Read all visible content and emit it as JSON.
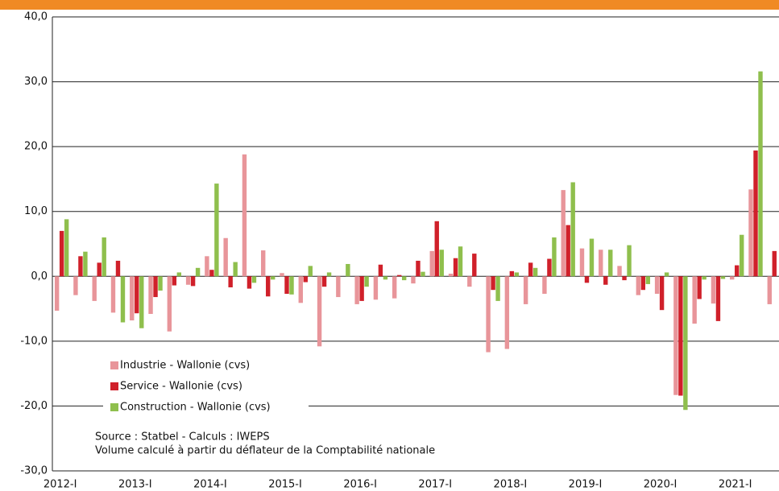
{
  "chart_data": {
    "type": "bar",
    "categories": [
      "2012-I",
      null,
      null,
      null,
      "2013-I",
      null,
      null,
      null,
      "2014-I",
      null,
      null,
      null,
      "2015-I",
      null,
      null,
      null,
      "2016-I",
      null,
      null,
      null,
      "2017-I",
      null,
      null,
      null,
      "2018-I",
      null,
      null,
      null,
      "2019-I",
      null,
      null,
      null,
      "2020-I",
      null,
      null,
      null,
      "2021-I",
      null,
      null
    ],
    "series": [
      {
        "name": "Industrie - Wallonie (cvs)",
        "color": "#e8959a",
        "values": [
          -5.3,
          -2.9,
          -3.8,
          -5.6,
          -6.8,
          -5.8,
          -8.5,
          -1.3,
          3.1,
          5.9,
          18.8,
          4.0,
          0.5,
          -4.1,
          -10.8,
          -3.2,
          -4.3,
          -3.6,
          -3.4,
          -1.1,
          3.9,
          0.4,
          -1.6,
          -11.7,
          -11.2,
          -4.3,
          -2.7,
          13.3,
          4.3,
          4.1,
          1.6,
          -2.9,
          -2.7,
          -18.3,
          -7.3,
          -4.2,
          -0.5,
          13.4,
          -4.3
        ]
      },
      {
        "name": "Service - Wallonie (cvs)",
        "color": "#d0202a",
        "values": [
          7.0,
          3.1,
          2.1,
          2.4,
          -5.7,
          -3.2,
          -1.4,
          -1.5,
          1.0,
          -1.7,
          -1.9,
          -3.1,
          -2.7,
          -0.9,
          -1.6,
          0.0,
          -3.8,
          1.8,
          0.2,
          2.4,
          8.5,
          2.8,
          3.5,
          -2.1,
          0.8,
          2.1,
          2.7,
          7.9,
          -1.0,
          -1.3,
          -0.6,
          -2.1,
          -5.2,
          -18.4,
          -3.5,
          -6.9,
          1.7,
          19.4,
          3.9
        ]
      },
      {
        "name": "Construction - Wallonie (cvs)",
        "color": "#8fbf4d",
        "values": [
          8.8,
          3.8,
          6.0,
          -7.1,
          -8.0,
          -2.2,
          0.6,
          1.3,
          14.3,
          2.2,
          -1.0,
          -0.5,
          -2.8,
          1.6,
          0.6,
          1.9,
          -1.6,
          -0.5,
          -0.6,
          0.7,
          4.1,
          4.6,
          0.0,
          -3.8,
          0.6,
          1.3,
          6.0,
          14.5,
          5.8,
          4.1,
          4.8,
          -1.2,
          0.6,
          -20.6,
          -0.5,
          -0.4,
          6.4,
          31.6,
          null
        ]
      }
    ],
    "ylim": [
      -30,
      40
    ],
    "yticks": [
      {
        "value": -30,
        "label": "-30,0"
      },
      {
        "value": -20,
        "label": "-20,0"
      },
      {
        "value": -10,
        "label": "-10,0"
      },
      {
        "value": 0,
        "label": "0,0"
      },
      {
        "value": 10,
        "label": "10,0"
      },
      {
        "value": 20,
        "label": "20,0"
      },
      {
        "value": 30,
        "label": "30,0"
      },
      {
        "value": 40,
        "label": "40,0"
      }
    ],
    "grid": true,
    "notes": [
      "Source : Statbel - Calculs : IWEPS",
      "Volume calculé à partir du déflateur de la Comptabilité nationale"
    ]
  }
}
